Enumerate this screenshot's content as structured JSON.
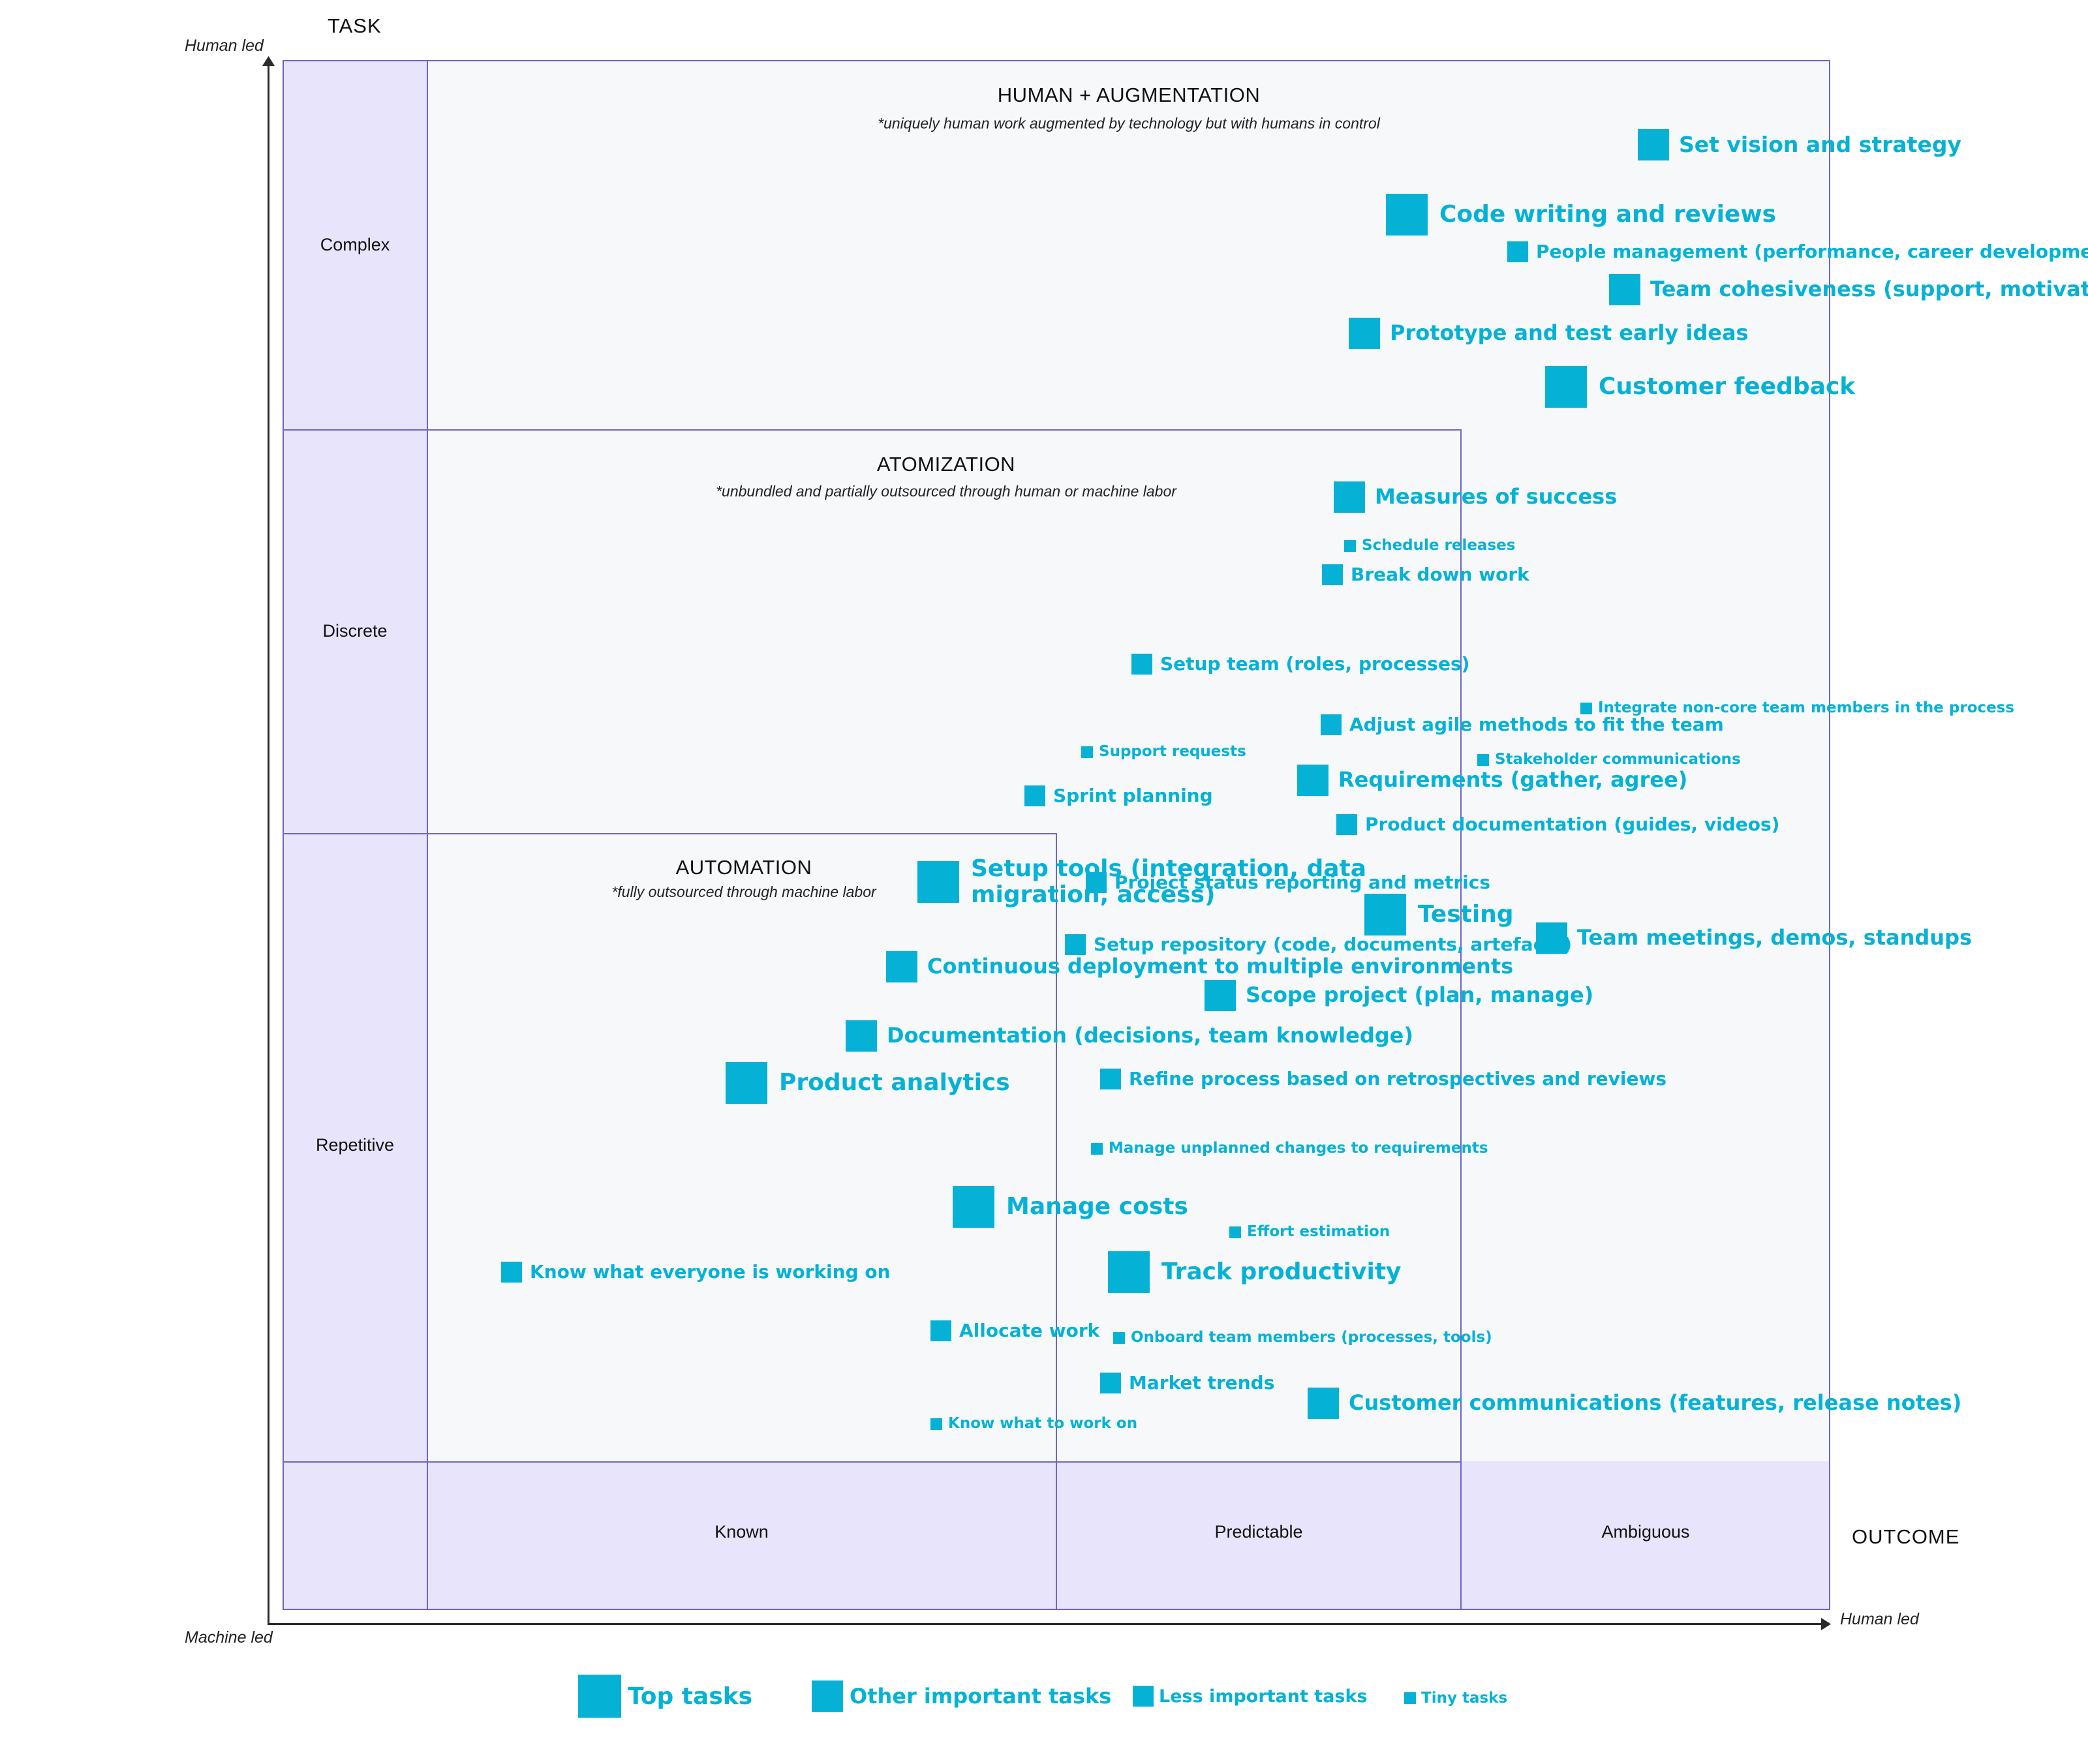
{
  "header": {
    "y_title": "TASK",
    "x_title": "OUTCOME"
  },
  "axes": {
    "y_top": "Human led",
    "origin": "Machine led",
    "x_right": "Human led"
  },
  "rows": {
    "complex": "Complex",
    "discrete": "Discrete",
    "repetitive": "Repetitive"
  },
  "columns": {
    "known": "Known",
    "predictable": "Predictable",
    "ambiguous": "Ambiguous"
  },
  "zones": {
    "augmentation": {
      "title": "HUMAN + AUGMENTATION",
      "note": "*uniquely human work augmented by technology but with humans in control"
    },
    "atomization": {
      "title": "ATOMIZATION",
      "note": "*unbundled and partially outsourced through human or machine labor"
    },
    "automation": {
      "title": "AUTOMATION",
      "note": "*fully outsourced through machine labor"
    }
  },
  "tasks": [
    {
      "label": "Set vision and strategy",
      "importance": "other"
    },
    {
      "label": "Code writing and reviews",
      "importance": "top"
    },
    {
      "label": "People management (performance, career development)",
      "importance": "less"
    },
    {
      "label": "Team cohesiveness (support, motivate)",
      "importance": "other"
    },
    {
      "label": "Prototype and test early ideas",
      "importance": "other"
    },
    {
      "label": "Customer feedback",
      "importance": "top"
    },
    {
      "label": "Measures of success",
      "importance": "other"
    },
    {
      "label": "Schedule releases",
      "importance": "tiny"
    },
    {
      "label": "Break down work",
      "importance": "less"
    },
    {
      "label": "Setup team (roles, processes)",
      "importance": "less"
    },
    {
      "label": "Integrate non-core team members in the process",
      "importance": "tiny"
    },
    {
      "label": "Adjust agile methods to fit the team",
      "importance": "less"
    },
    {
      "label": "Support requests",
      "importance": "tiny"
    },
    {
      "label": "Stakeholder communications",
      "importance": "tiny"
    },
    {
      "label": "Requirements (gather, agree)",
      "importance": "other"
    },
    {
      "label": "Sprint planning",
      "importance": "less"
    },
    {
      "label": "Product documentation (guides, videos)",
      "importance": "less"
    },
    {
      "label": "Setup tools (integration, data migration, access)",
      "importance": "top"
    },
    {
      "label": "Project status reporting and metrics",
      "importance": "less"
    },
    {
      "label": "Testing",
      "importance": "top"
    },
    {
      "label": "Team meetings, demos, standups",
      "importance": "other"
    },
    {
      "label": "Setup repository (code, documents, artefacts)",
      "importance": "less"
    },
    {
      "label": "Continuous deployment to multiple environments",
      "importance": "other"
    },
    {
      "label": "Scope project (plan, manage)",
      "importance": "other"
    },
    {
      "label": "Documentation (decisions, team knowledge)",
      "importance": "other"
    },
    {
      "label": "Product analytics",
      "importance": "top"
    },
    {
      "label": "Refine process based on retrospectives and reviews",
      "importance": "less"
    },
    {
      "label": "Manage unplanned changes to requirements",
      "importance": "tiny"
    },
    {
      "label": "Manage costs",
      "importance": "top"
    },
    {
      "label": "Effort estimation",
      "importance": "tiny"
    },
    {
      "label": "Know what everyone is working on",
      "importance": "less"
    },
    {
      "label": "Track productivity",
      "importance": "top"
    },
    {
      "label": "Allocate work",
      "importance": "less"
    },
    {
      "label": "Onboard team members (processes, tools)",
      "importance": "tiny"
    },
    {
      "label": "Market trends",
      "importance": "less"
    },
    {
      "label": "Customer communications (features, release notes)",
      "importance": "other"
    },
    {
      "label": "Know what to work on",
      "importance": "tiny"
    }
  ],
  "legend": {
    "top": "Top tasks",
    "other": "Other important tasks",
    "less": "Less important tasks",
    "tiny": "Tiny tasks"
  },
  "colors": {
    "task": "#05b2d6",
    "band": "#e8e4fb",
    "border": "#6d66c2"
  }
}
